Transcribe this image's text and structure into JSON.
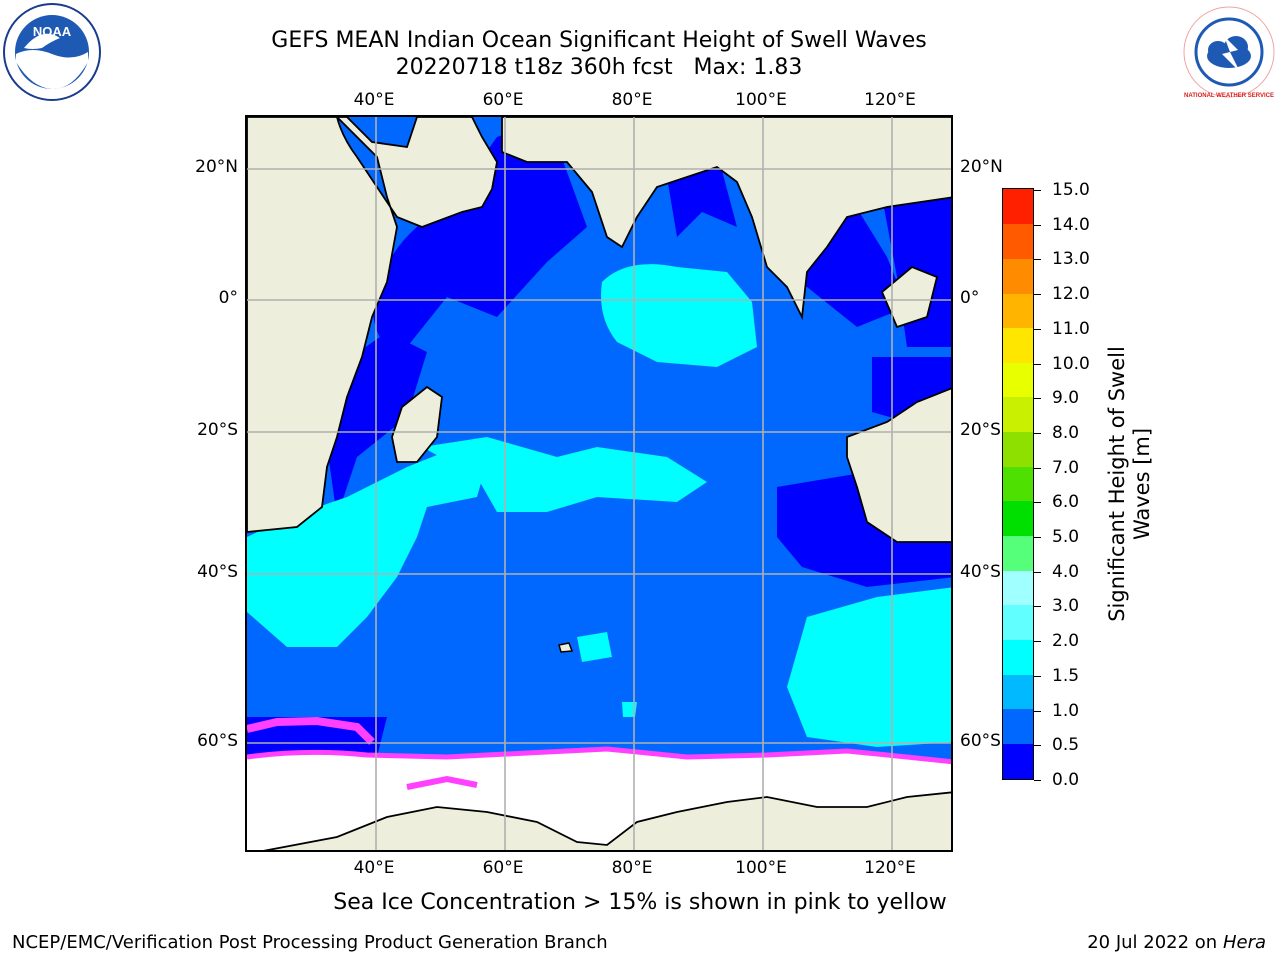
{
  "title_line1": "GEFS MEAN Indian Ocean Significant Height of Swell Waves",
  "title_line2": "20220718 t18z 360h fcst   Max: 1.83",
  "lon_ticks": [
    "40°E",
    "60°E",
    "80°E",
    "100°E",
    "120°E"
  ],
  "lat_ticks": [
    "20°N",
    "0°",
    "20°S",
    "40°S",
    "60°S"
  ],
  "colorbar": {
    "title_line1": "Significant Height of Swell",
    "title_line2": "Waves [m]",
    "tick_labels": [
      "0.0",
      "0.5",
      "1.0",
      "1.5",
      "2.0",
      "3.0",
      "4.0",
      "5.0",
      "6.0",
      "7.0",
      "8.0",
      "9.0",
      "10.0",
      "11.0",
      "12.0",
      "13.0",
      "14.0",
      "15.0"
    ],
    "colors": [
      "#0000ff",
      "#0068ff",
      "#00b9ff",
      "#00ffff",
      "#61ffff",
      "#a0ffff",
      "#55ff7a",
      "#00e000",
      "#4ee000",
      "#8ee000",
      "#c8f000",
      "#e8ff00",
      "#ffe600",
      "#ffb400",
      "#ff8c00",
      "#ff5a00",
      "#ff2000"
    ]
  },
  "map_colors": {
    "land": "#eeeedc",
    "ocean_low": "#0000ff",
    "ocean_mid": "#0068ff",
    "ocean_high": "#00ffff",
    "ice": "#ffffff",
    "ice_edge": "#ff40ff",
    "grid": "#b0b0b0"
  },
  "ice_note": "Sea Ice Concentration > 15% is shown in pink to yellow",
  "footer_left": "NCEP/EMC/Verification Post Processing Product Generation Branch",
  "footer_right": {
    "date": "20 Jul 2022 on ",
    "machine": "Hera"
  },
  "logos": {
    "noaa": "NOAA",
    "nws": "NATIONAL WEATHER SERVICE"
  }
}
